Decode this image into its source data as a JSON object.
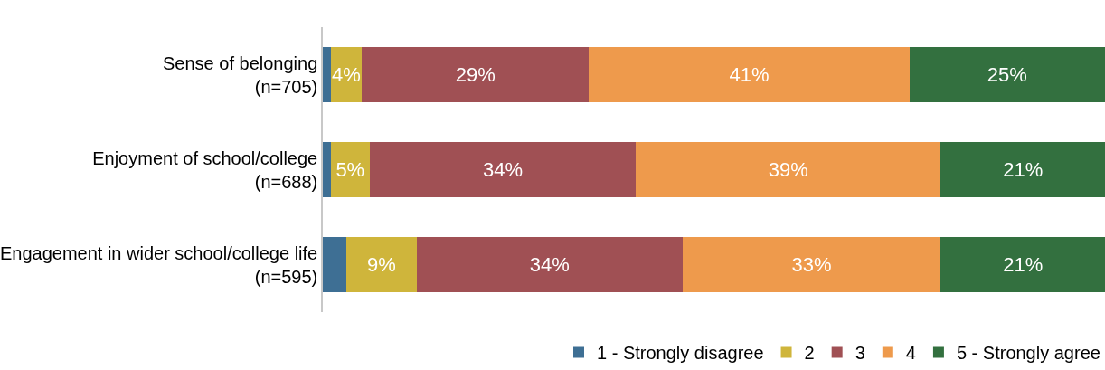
{
  "chart_data": {
    "type": "bar",
    "orientation": "horizontal",
    "stacked": true,
    "categories": [
      "Sense of belonging\n(n=705)",
      "Enjoyment of school/college\n(n=688)",
      "Engagement in wider school/college life\n(n=595)"
    ],
    "xlim": [
      0,
      100
    ],
    "tick_labels": "y",
    "legend": "bottom",
    "series": [
      {
        "name": "1 - Strongly disagree",
        "color": "#3e6f94",
        "values": [
          1,
          1,
          3
        ],
        "value_labels": [
          null,
          null,
          null
        ]
      },
      {
        "name": "2",
        "color": "#cfb53b",
        "values": [
          4,
          5,
          9
        ],
        "value_labels": [
          "4%",
          "5%",
          "9%"
        ]
      },
      {
        "name": "3",
        "color": "#a05054",
        "values": [
          29,
          34,
          34
        ],
        "value_labels": [
          "29%",
          "34%",
          "34%"
        ]
      },
      {
        "name": "4",
        "color": "#ee9a4c",
        "values": [
          41,
          39,
          33
        ],
        "value_labels": [
          "41%",
          "39%",
          "33%"
        ]
      },
      {
        "name": "5 - Strongly agree",
        "color": "#33703f",
        "values": [
          25,
          21,
          21
        ],
        "value_labels": [
          "25%",
          "21%",
          "21%"
        ]
      }
    ]
  }
}
